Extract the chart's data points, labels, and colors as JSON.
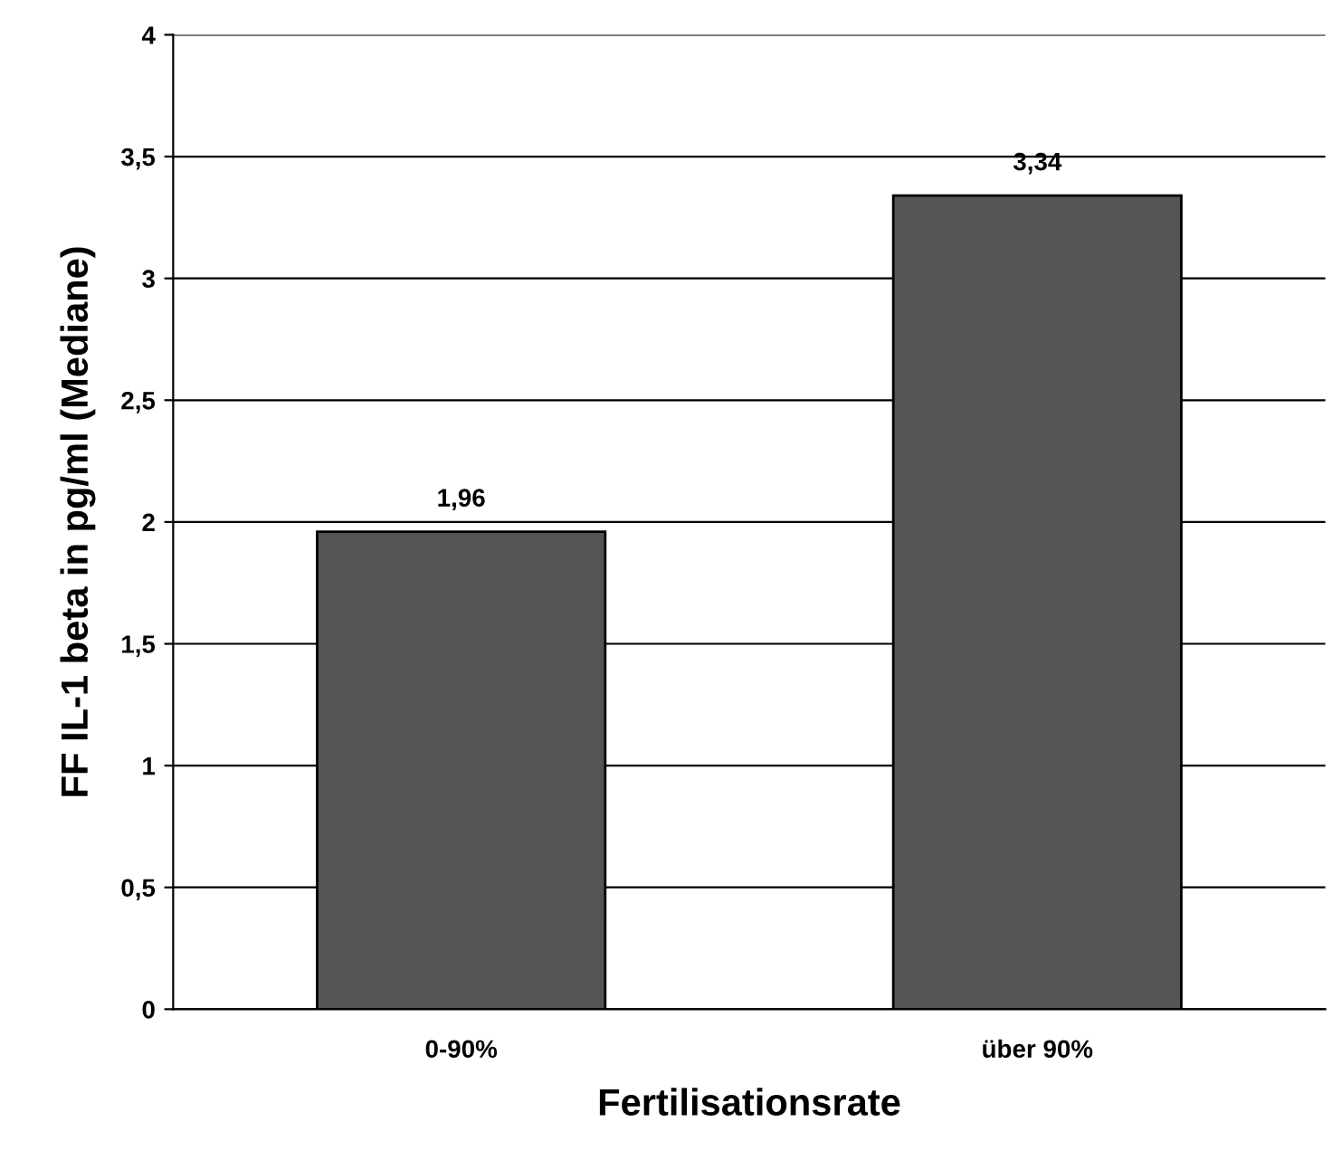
{
  "chart_data": {
    "type": "bar",
    "xlabel": "Fertilisationsrate",
    "ylabel": "FF IL-1 beta in pg/ml (Mediane)",
    "categories": [
      "0-90%",
      "über 90%"
    ],
    "values": [
      1.96,
      3.34
    ],
    "value_labels": [
      "1,96",
      "3,34"
    ],
    "color": "#555555",
    "ylim": [
      0,
      4
    ],
    "yticks": [
      0,
      {
        "value": 0.5,
        "label": "0,5"
      },
      1,
      {
        "value": 1.5,
        "label": "1,5"
      },
      2,
      {
        "value": 2.5,
        "label": "2,5"
      },
      3,
      {
        "value": 3.5,
        "label": "3,5"
      },
      4
    ],
    "grid": "y"
  }
}
